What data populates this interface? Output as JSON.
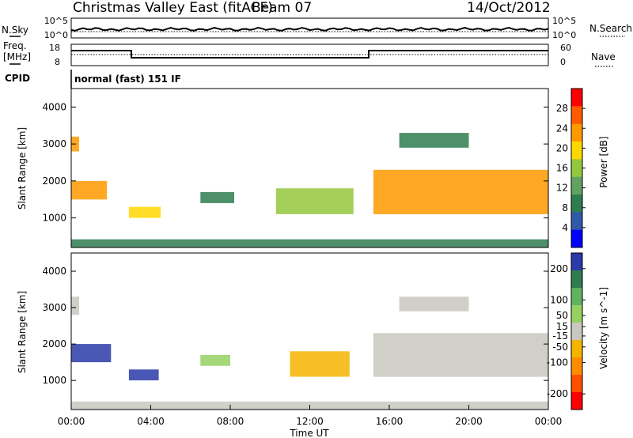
{
  "header": {
    "title": "Christmas Valley East (fitACF)",
    "beam": "Beam 07",
    "date": "14/Oct/2012"
  },
  "status_panel": {
    "nsky_label": "N.Sky",
    "nsearch_label": "N.Search",
    "y_ticks_left": [
      "10^5",
      "10^0"
    ],
    "y_ticks_right": [
      "10^5",
      "10^0"
    ]
  },
  "freq_panel": {
    "freq_label": "Freq.",
    "freq_unit": "[MHz]",
    "nave_label": "Nave",
    "left_ticks": [
      "18",
      "8"
    ],
    "right_ticks": [
      "60",
      "0"
    ],
    "cpid_label": "CPID",
    "cpid_text": "normal (fast) 151 IF"
  },
  "colors": {
    "power_scale": [
      "#0000ff",
      "#2e5aa8",
      "#2e7d4f",
      "#5fa35f",
      "#94c83c",
      "#ffd700",
      "#ff9900",
      "#ff5a00",
      "#ff0000"
    ],
    "velocity_scale": [
      "#2a3aa8",
      "#2e7d4f",
      "#5fb35f",
      "#96d060",
      "#c8c8c0",
      "#f4b400",
      "#ff8c00",
      "#ff5000",
      "#ff0000"
    ]
  },
  "chart_data": [
    {
      "type": "heatmap",
      "name": "power",
      "ylabel": "Slant Range [km]",
      "y_ticks": [
        "1000",
        "2000",
        "3000",
        "4000"
      ],
      "ylim": [
        200,
        4500
      ],
      "xlim_hours": [
        0,
        24
      ],
      "colorbar_label": "Power [dB]",
      "colorbar_ticks": [
        "4",
        "8",
        "12",
        "16",
        "20",
        "24",
        "28"
      ],
      "colorbar_range": [
        0,
        32
      ],
      "regions": [
        {
          "t0": 0.0,
          "t1": 0.4,
          "r0": 2800,
          "r1": 3200,
          "v": 22
        },
        {
          "t0": 0.0,
          "t1": 1.8,
          "r0": 1500,
          "r1": 2000,
          "v": 24
        },
        {
          "t0": 2.9,
          "t1": 4.5,
          "r0": 1000,
          "r1": 1300,
          "v": 18
        },
        {
          "t0": 6.5,
          "t1": 8.2,
          "r0": 1400,
          "r1": 1700,
          "v": 8
        },
        {
          "t0": 10.3,
          "t1": 14.2,
          "r0": 1100,
          "r1": 1800,
          "v": 14
        },
        {
          "t0": 15.2,
          "t1": 24.0,
          "r0": 1100,
          "r1": 2300,
          "v": 22
        },
        {
          "t0": 16.5,
          "t1": 20.0,
          "r0": 2900,
          "r1": 3300,
          "v": 6
        },
        {
          "t0": 0.0,
          "t1": 24.0,
          "r0": 200,
          "r1": 420,
          "v": 6
        }
      ]
    },
    {
      "type": "heatmap",
      "name": "velocity",
      "ylabel": "Slant Range [km]",
      "y_ticks": [
        "1000",
        "2000",
        "3000",
        "4000"
      ],
      "ylim": [
        200,
        4500
      ],
      "xlim_hours": [
        0,
        24
      ],
      "xlabel": "Time UT",
      "x_ticks": [
        "00:00",
        "04:00",
        "08:00",
        "12:00",
        "16:00",
        "20:00",
        "00:00"
      ],
      "colorbar_label": "Velocity [m s^-1]",
      "colorbar_ticks": [
        "200",
        "100",
        "50",
        "15",
        "-15",
        "-50",
        "-100",
        "-200"
      ],
      "colorbar_range": [
        -250,
        250
      ],
      "regions": [
        {
          "t0": 0.0,
          "t1": 0.4,
          "r0": 2800,
          "r1": 3300,
          "v": 0
        },
        {
          "t0": 0.0,
          "t1": 2.0,
          "r0": 1500,
          "r1": 2000,
          "v": 220
        },
        {
          "t0": 2.9,
          "t1": 4.4,
          "r0": 1000,
          "r1": 1300,
          "v": 220
        },
        {
          "t0": 6.5,
          "t1": 8.0,
          "r0": 1400,
          "r1": 1700,
          "v": 40
        },
        {
          "t0": 11.0,
          "t1": 14.0,
          "r0": 1100,
          "r1": 1800,
          "v": -90
        },
        {
          "t0": 15.2,
          "t1": 24.0,
          "r0": 1100,
          "r1": 2300,
          "v": 0
        },
        {
          "t0": 16.5,
          "t1": 20.0,
          "r0": 2900,
          "r1": 3300,
          "v": 0
        },
        {
          "t0": 0.0,
          "t1": 24.0,
          "r0": 200,
          "r1": 420,
          "v": 30
        }
      ]
    }
  ]
}
